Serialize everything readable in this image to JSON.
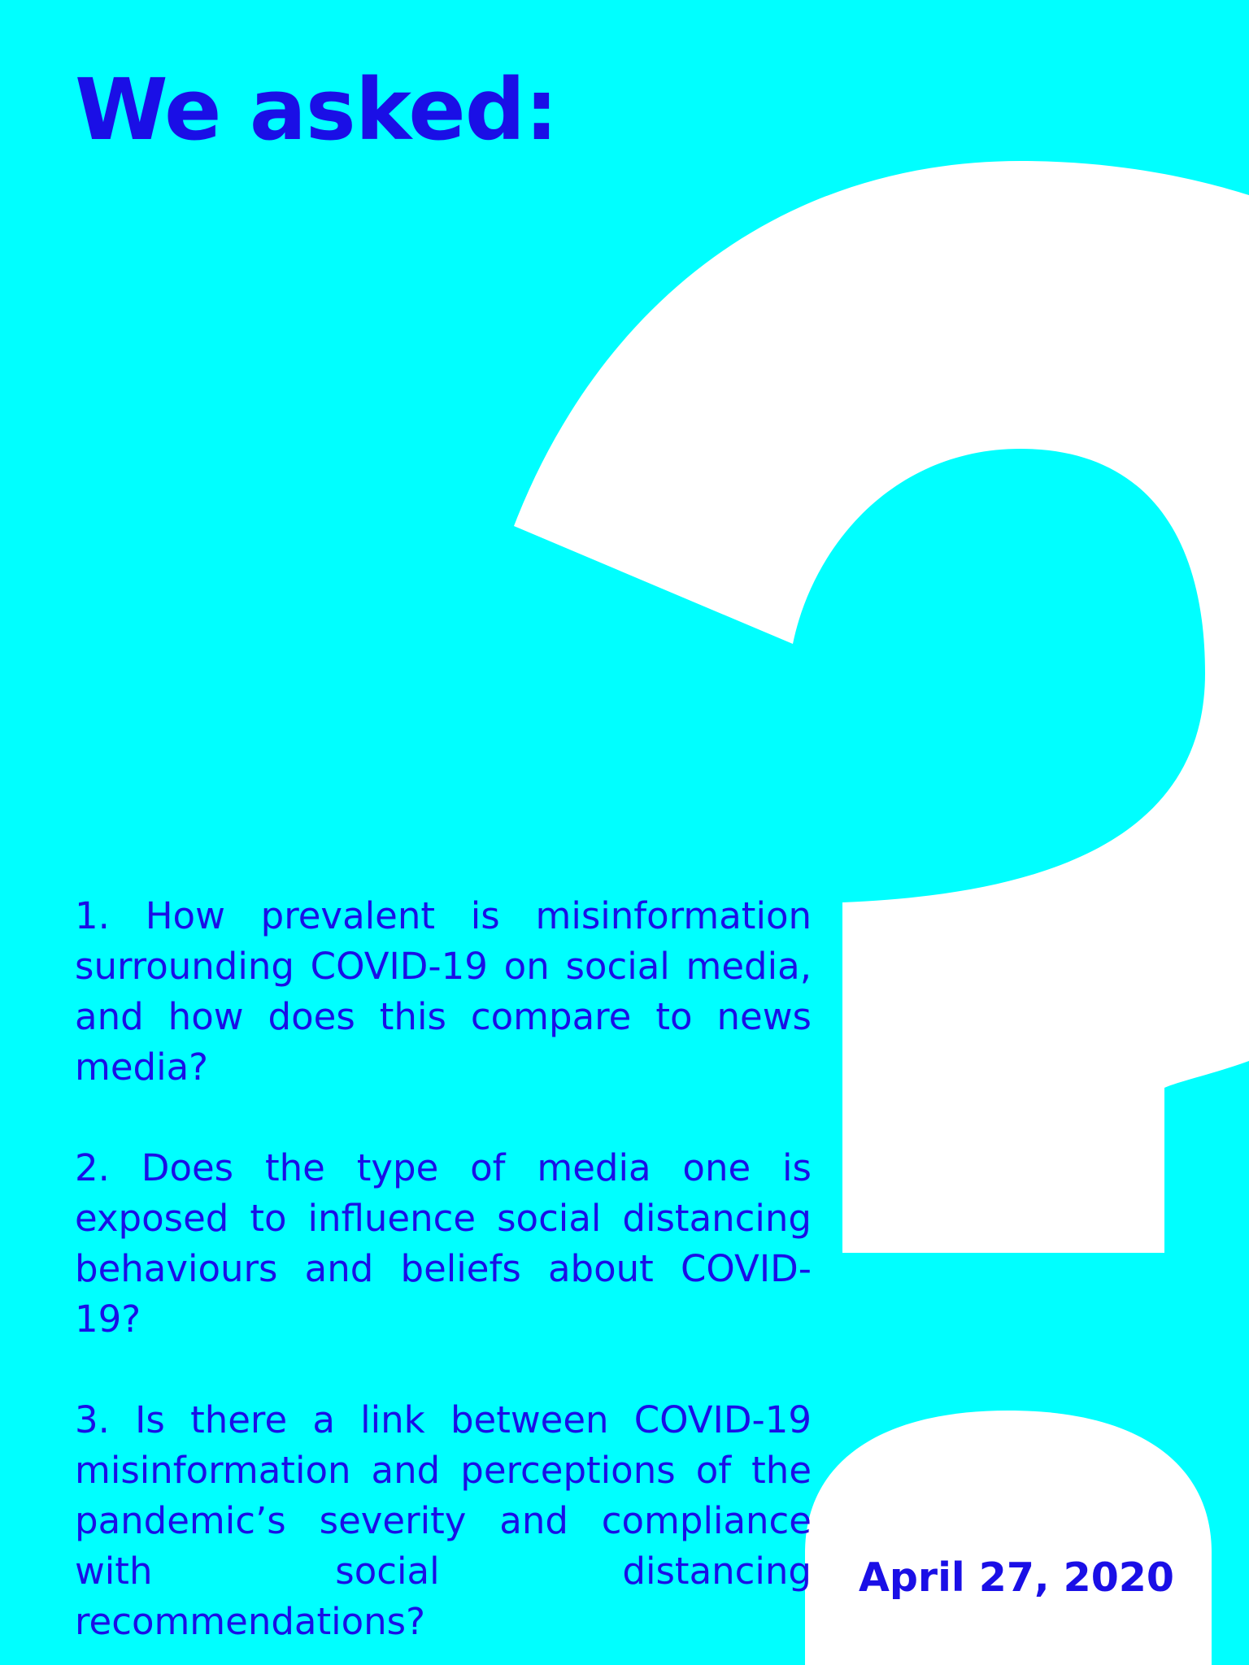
{
  "colors": {
    "background": "#00FFFF",
    "text": "#1A0FE6",
    "question_mark": "#FFFFFF"
  },
  "decoration": {
    "icon": "question-mark-icon"
  },
  "title": "We asked:",
  "questions": [
    "1. How prevalent is misinformation surrounding COVID-19 on social media, and how does this compare to news media?",
    "2. Does the type of media one is exposed to influence social distancing behaviours and beliefs about COVID-19?",
    "3. Is there a link between COVID-19 misinformation and perceptions of the pandemic’s severity and compliance with social distancing recommendations?"
  ],
  "date": "April 27, 2020"
}
